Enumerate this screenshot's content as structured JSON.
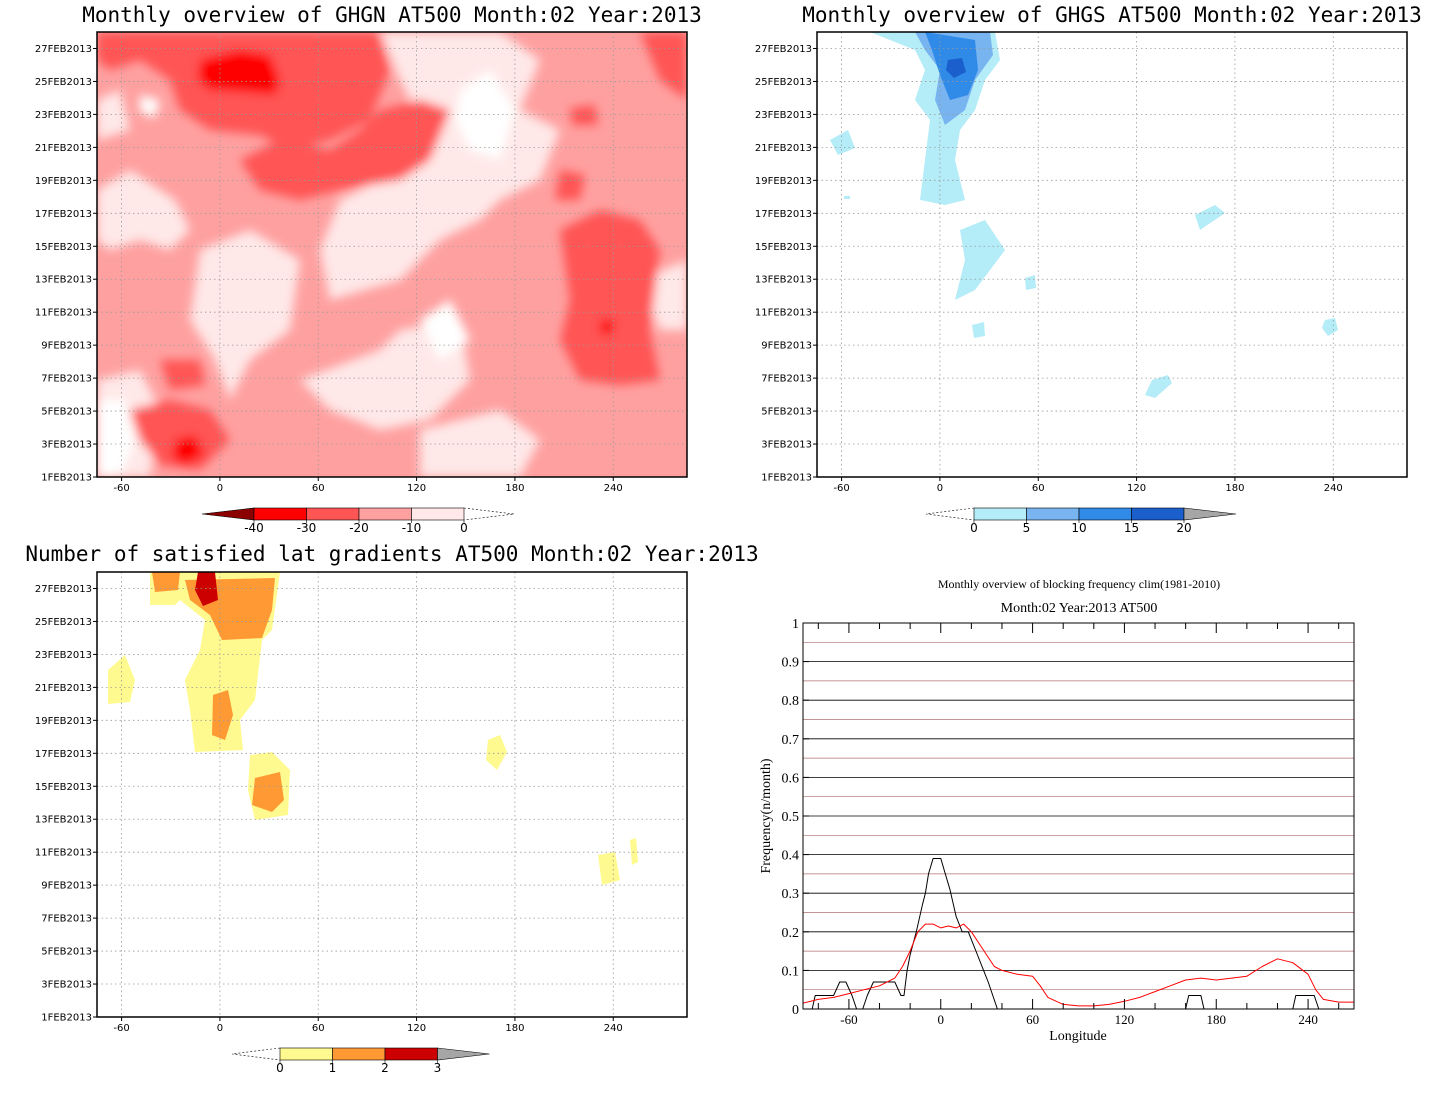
{
  "panels": [
    {
      "title": "Monthly overview of GHGN AT500 Month:02 Year:2013",
      "x_ticks": [
        "-60",
        "0",
        "60",
        "120",
        "180",
        "240"
      ],
      "y_ticks": [
        "1FEB2013",
        "3FEB2013",
        "5FEB2013",
        "7FEB2013",
        "9FEB2013",
        "11FEB2013",
        "13FEB2013",
        "15FEB2013",
        "17FEB2013",
        "19FEB2013",
        "21FEB2013",
        "23FEB2013",
        "25FEB2013",
        "27FEB2013"
      ],
      "colorbar": {
        "labels": [
          "-40",
          "-30",
          "-20",
          "-10",
          "0"
        ],
        "colors": [
          "#8b0000",
          "#ff0000",
          "#ff5555",
          "#ffa0a0",
          "#ffe8e8"
        ]
      }
    },
    {
      "title": "Monthly overview of GHGS AT500 Month:02 Year:2013",
      "x_ticks": [
        "-60",
        "0",
        "60",
        "120",
        "180",
        "240"
      ],
      "y_ticks": [
        "1FEB2013",
        "3FEB2013",
        "5FEB2013",
        "7FEB2013",
        "9FEB2013",
        "11FEB2013",
        "13FEB2013",
        "15FEB2013",
        "17FEB2013",
        "19FEB2013",
        "21FEB2013",
        "23FEB2013",
        "25FEB2013",
        "27FEB2013"
      ],
      "colorbar": {
        "labels": [
          "0",
          "5",
          "10",
          "15",
          "20"
        ],
        "colors": [
          "#b4ecf8",
          "#78b4f0",
          "#2f8ae8",
          "#1a5fcc",
          "#a6a6a6"
        ]
      }
    },
    {
      "title": "Number of satisfied lat gradients AT500 Month:02 Year:2013",
      "x_ticks": [
        "-60",
        "0",
        "60",
        "120",
        "180",
        "240"
      ],
      "y_ticks": [
        "1FEB2013",
        "3FEB2013",
        "5FEB2013",
        "7FEB2013",
        "9FEB2013",
        "11FEB2013",
        "13FEB2013",
        "15FEB2013",
        "17FEB2013",
        "19FEB2013",
        "21FEB2013",
        "23FEB2013",
        "25FEB2013",
        "27FEB2013"
      ],
      "colorbar": {
        "labels": [
          "0",
          "1",
          "2",
          "3"
        ],
        "colors": [
          "#fffa90",
          "#ff9933",
          "#cc0000",
          "#a6a6a6"
        ]
      }
    }
  ],
  "chart_data": {
    "type": "line",
    "title": "Monthly overview of blocking frequency clim(1981-2010)",
    "subtitle": "Month:02 Year:2013  AT500",
    "xlabel": "Longitude",
    "ylabel": "Frequency(n/month)",
    "xlim": [
      -90,
      270
    ],
    "ylim": [
      0,
      1
    ],
    "x_ticks": [
      "-60",
      "0",
      "60",
      "120",
      "180",
      "240"
    ],
    "y_ticks": [
      "0",
      "0.1",
      "0.2",
      "0.3",
      "0.4",
      "0.5",
      "0.6",
      "0.7",
      "0.8",
      "0.9",
      "1"
    ],
    "grid": true,
    "series": [
      {
        "color": "#000000",
        "points": [
          [
            -90,
            0
          ],
          [
            -84,
            0
          ],
          [
            -82,
            0.035
          ],
          [
            -70,
            0.035
          ],
          [
            -66,
            0.07
          ],
          [
            -62,
            0.07
          ],
          [
            -58,
            0.035
          ],
          [
            -55,
            0
          ],
          [
            -51,
            0
          ],
          [
            -48,
            0.035
          ],
          [
            -44,
            0.07
          ],
          [
            -30,
            0.07
          ],
          [
            -26,
            0.035
          ],
          [
            -24,
            0.035
          ],
          [
            -22,
            0.1
          ],
          [
            -20,
            0.14
          ],
          [
            -16,
            0.2
          ],
          [
            -12,
            0.27
          ],
          [
            -10,
            0.3
          ],
          [
            -8,
            0.35
          ],
          [
            -5,
            0.39
          ],
          [
            0,
            0.39
          ],
          [
            3,
            0.35
          ],
          [
            6,
            0.31
          ],
          [
            10,
            0.24
          ],
          [
            14,
            0.2
          ],
          [
            18,
            0.2
          ],
          [
            21,
            0.17
          ],
          [
            24,
            0.14
          ],
          [
            28,
            0.1
          ],
          [
            31,
            0.07
          ],
          [
            34,
            0.035
          ],
          [
            37,
            0
          ],
          [
            160,
            0
          ],
          [
            162,
            0.035
          ],
          [
            170,
            0.035
          ],
          [
            172,
            0
          ],
          [
            230,
            0
          ],
          [
            232,
            0.035
          ],
          [
            244,
            0.035
          ],
          [
            247,
            0
          ],
          [
            270,
            0
          ]
        ]
      },
      {
        "color": "#ff0000",
        "points": [
          [
            -90,
            0.015
          ],
          [
            -80,
            0.025
          ],
          [
            -70,
            0.03
          ],
          [
            -60,
            0.04
          ],
          [
            -50,
            0.05
          ],
          [
            -40,
            0.06
          ],
          [
            -30,
            0.08
          ],
          [
            -25,
            0.11
          ],
          [
            -20,
            0.15
          ],
          [
            -15,
            0.2
          ],
          [
            -10,
            0.22
          ],
          [
            -5,
            0.22
          ],
          [
            0,
            0.21
          ],
          [
            5,
            0.215
          ],
          [
            10,
            0.21
          ],
          [
            15,
            0.22
          ],
          [
            20,
            0.2
          ],
          [
            25,
            0.17
          ],
          [
            30,
            0.14
          ],
          [
            35,
            0.11
          ],
          [
            40,
            0.1
          ],
          [
            50,
            0.09
          ],
          [
            60,
            0.085
          ],
          [
            65,
            0.06
          ],
          [
            70,
            0.03
          ],
          [
            80,
            0.012
          ],
          [
            90,
            0.008
          ],
          [
            100,
            0.008
          ],
          [
            110,
            0.012
          ],
          [
            120,
            0.02
          ],
          [
            130,
            0.03
          ],
          [
            140,
            0.045
          ],
          [
            150,
            0.06
          ],
          [
            160,
            0.075
          ],
          [
            170,
            0.08
          ],
          [
            180,
            0.075
          ],
          [
            190,
            0.08
          ],
          [
            200,
            0.085
          ],
          [
            210,
            0.11
          ],
          [
            220,
            0.13
          ],
          [
            230,
            0.12
          ],
          [
            240,
            0.09
          ],
          [
            245,
            0.05
          ],
          [
            250,
            0.025
          ],
          [
            260,
            0.018
          ],
          [
            270,
            0.018
          ]
        ]
      }
    ]
  }
}
